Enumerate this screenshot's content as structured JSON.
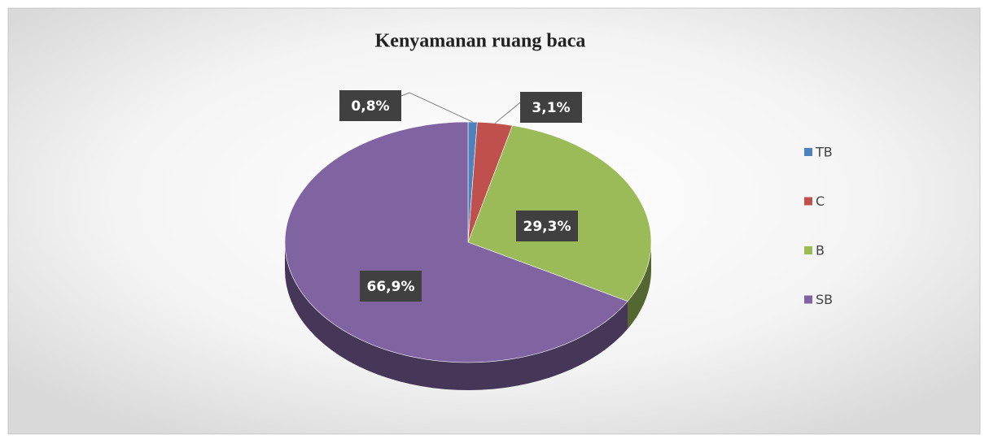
{
  "chart_data": {
    "type": "pie",
    "title": "Kenyamanan ruang baca",
    "categories": [
      "TB",
      "C",
      "B",
      "SB"
    ],
    "values": [
      0.8,
      3.1,
      29.3,
      66.9
    ],
    "value_labels": [
      "0,8%",
      "3,1%",
      "29,3%",
      "66,9%"
    ],
    "colors": [
      "#4f81bd",
      "#c0504d",
      "#9bbb59",
      "#8064a2"
    ],
    "legend": "right"
  }
}
